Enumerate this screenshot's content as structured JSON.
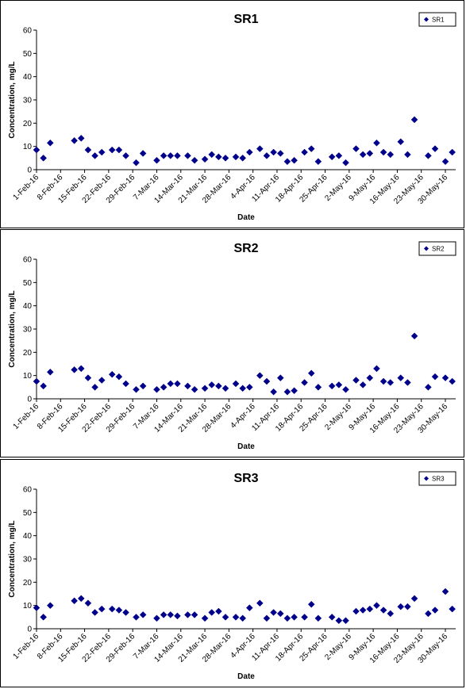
{
  "chart_data": [
    {
      "type": "scatter",
      "title": "SR1",
      "xlabel": "Date",
      "ylabel": "Concentration, mg/L",
      "ylim": [
        0,
        60
      ],
      "yticks": [
        0,
        10,
        20,
        30,
        40,
        50,
        60
      ],
      "xlim": [
        "2016-02-01",
        "2016-06-02"
      ],
      "xticks": [
        "1-Feb-16",
        "8-Feb-16",
        "15-Feb-16",
        "22-Feb-16",
        "29-Feb-16",
        "7-Mar-16",
        "14-Mar-16",
        "21-Mar-16",
        "28-Mar-16",
        "4-Apr-16",
        "11-Apr-16",
        "18-Apr-16",
        "25-Apr-16",
        "2-May-16",
        "9-May-16",
        "16-May-16",
        "23-May-16",
        "30-May-16"
      ],
      "legend": "top-right",
      "series": [
        {
          "name": "SR1",
          "color": "#00008b",
          "x": [
            "2016-02-01",
            "2016-02-03",
            "2016-02-05",
            "2016-02-12",
            "2016-02-14",
            "2016-02-16",
            "2016-02-18",
            "2016-02-20",
            "2016-02-23",
            "2016-02-25",
            "2016-02-27",
            "2016-03-01",
            "2016-03-03",
            "2016-03-07",
            "2016-03-09",
            "2016-03-11",
            "2016-03-13",
            "2016-03-16",
            "2016-03-18",
            "2016-03-21",
            "2016-03-23",
            "2016-03-25",
            "2016-03-27",
            "2016-03-30",
            "2016-04-01",
            "2016-04-03",
            "2016-04-06",
            "2016-04-08",
            "2016-04-10",
            "2016-04-12",
            "2016-04-14",
            "2016-04-16",
            "2016-04-19",
            "2016-04-21",
            "2016-04-23",
            "2016-04-27",
            "2016-04-29",
            "2016-05-01",
            "2016-05-04",
            "2016-05-06",
            "2016-05-08",
            "2016-05-10",
            "2016-05-12",
            "2016-05-14",
            "2016-05-17",
            "2016-05-19",
            "2016-05-21",
            "2016-05-25",
            "2016-05-27",
            "2016-05-30",
            "2016-06-01"
          ],
          "y": [
            8.5,
            5,
            11.5,
            12.5,
            13.5,
            8.5,
            6,
            7.5,
            8.5,
            8.5,
            6,
            3,
            7,
            4,
            6,
            6,
            6,
            6,
            4,
            4.5,
            6.5,
            5.5,
            5,
            5.5,
            5,
            7.5,
            9,
            6,
            7.5,
            7,
            3.5,
            4,
            7.5,
            9,
            3.5,
            5.5,
            6,
            3,
            9,
            6.5,
            7,
            11.5,
            7.5,
            6.5,
            12,
            6.5,
            21.5,
            6,
            9,
            3.5,
            7.5
          ]
        }
      ]
    },
    {
      "type": "scatter",
      "title": "SR2",
      "xlabel": "Date",
      "ylabel": "Concentration, mg/L",
      "ylim": [
        0,
        60
      ],
      "yticks": [
        0,
        10,
        20,
        30,
        40,
        50,
        60
      ],
      "xlim": [
        "2016-02-01",
        "2016-06-02"
      ],
      "xticks": [
        "1-Feb-16",
        "8-Feb-16",
        "15-Feb-16",
        "22-Feb-16",
        "29-Feb-16",
        "7-Mar-16",
        "14-Mar-16",
        "21-Mar-16",
        "28-Mar-16",
        "4-Apr-16",
        "11-Apr-16",
        "18-Apr-16",
        "25-Apr-16",
        "2-May-16",
        "9-May-16",
        "16-May-16",
        "23-May-16",
        "30-May-16"
      ],
      "legend": "top-right",
      "series": [
        {
          "name": "SR2",
          "color": "#00008b",
          "x": [
            "2016-02-01",
            "2016-02-03",
            "2016-02-05",
            "2016-02-12",
            "2016-02-14",
            "2016-02-16",
            "2016-02-18",
            "2016-02-20",
            "2016-02-23",
            "2016-02-25",
            "2016-02-27",
            "2016-03-01",
            "2016-03-03",
            "2016-03-07",
            "2016-03-09",
            "2016-03-11",
            "2016-03-13",
            "2016-03-16",
            "2016-03-18",
            "2016-03-21",
            "2016-03-23",
            "2016-03-25",
            "2016-03-27",
            "2016-03-30",
            "2016-04-01",
            "2016-04-03",
            "2016-04-06",
            "2016-04-08",
            "2016-04-10",
            "2016-04-12",
            "2016-04-14",
            "2016-04-16",
            "2016-04-19",
            "2016-04-21",
            "2016-04-23",
            "2016-04-27",
            "2016-04-29",
            "2016-05-01",
            "2016-05-04",
            "2016-05-06",
            "2016-05-08",
            "2016-05-10",
            "2016-05-12",
            "2016-05-14",
            "2016-05-17",
            "2016-05-19",
            "2016-05-21",
            "2016-05-25",
            "2016-05-27",
            "2016-05-30",
            "2016-06-01"
          ],
          "y": [
            7.5,
            5.5,
            11.5,
            12.5,
            13,
            9,
            5,
            8,
            10.5,
            9.5,
            6.5,
            4,
            5.5,
            4,
            5,
            6.5,
            6.5,
            5.5,
            4,
            4.5,
            6,
            5.5,
            4.5,
            6.5,
            4.5,
            5,
            10,
            7.5,
            3,
            9,
            3,
            3.5,
            7,
            11,
            5,
            5.5,
            6,
            4,
            8,
            6,
            9,
            13,
            7.5,
            7,
            9,
            7,
            27,
            5,
            9.5,
            9,
            7.5
          ]
        }
      ]
    },
    {
      "type": "scatter",
      "title": "SR3",
      "xlabel": "Date",
      "ylabel": "Concentration, mg/L",
      "ylim": [
        0,
        60
      ],
      "yticks": [
        0,
        10,
        20,
        30,
        40,
        50,
        60
      ],
      "xlim": [
        "2016-02-01",
        "2016-06-02"
      ],
      "xticks": [
        "1-Feb-16",
        "8-Feb-16",
        "15-Feb-16",
        "22-Feb-16",
        "29-Feb-16",
        "7-Mar-16",
        "14-Mar-16",
        "21-Mar-16",
        "28-Mar-16",
        "4-Apr-16",
        "11-Apr-16",
        "18-Apr-16",
        "25-Apr-16",
        "2-May-16",
        "9-May-16",
        "16-May-16",
        "23-May-16",
        "30-May-16"
      ],
      "legend": "top-right",
      "series": [
        {
          "name": "SR3",
          "color": "#00008b",
          "x": [
            "2016-02-01",
            "2016-02-03",
            "2016-02-05",
            "2016-02-12",
            "2016-02-14",
            "2016-02-16",
            "2016-02-18",
            "2016-02-20",
            "2016-02-23",
            "2016-02-25",
            "2016-02-27",
            "2016-03-01",
            "2016-03-03",
            "2016-03-07",
            "2016-03-09",
            "2016-03-11",
            "2016-03-13",
            "2016-03-16",
            "2016-03-18",
            "2016-03-21",
            "2016-03-23",
            "2016-03-25",
            "2016-03-27",
            "2016-03-30",
            "2016-04-01",
            "2016-04-03",
            "2016-04-06",
            "2016-04-08",
            "2016-04-10",
            "2016-04-12",
            "2016-04-14",
            "2016-04-16",
            "2016-04-19",
            "2016-04-21",
            "2016-04-23",
            "2016-04-27",
            "2016-04-29",
            "2016-05-01",
            "2016-05-04",
            "2016-05-06",
            "2016-05-08",
            "2016-05-10",
            "2016-05-12",
            "2016-05-14",
            "2016-05-17",
            "2016-05-19",
            "2016-05-21",
            "2016-05-25",
            "2016-05-27",
            "2016-05-30",
            "2016-06-01"
          ],
          "y": [
            9,
            5,
            10,
            12,
            13,
            11,
            7,
            8.5,
            8.5,
            8,
            7,
            5,
            6,
            4.5,
            6,
            6,
            5.5,
            6,
            6,
            4.5,
            7,
            7.5,
            5,
            5,
            4.5,
            9,
            11,
            4.5,
            7,
            6.5,
            4.5,
            5,
            5,
            10.5,
            4.5,
            5,
            3.5,
            3.5,
            7.5,
            8,
            8.5,
            10,
            8,
            6.5,
            9.5,
            9.5,
            13,
            6.5,
            8,
            16,
            8.5
          ]
        }
      ]
    }
  ]
}
